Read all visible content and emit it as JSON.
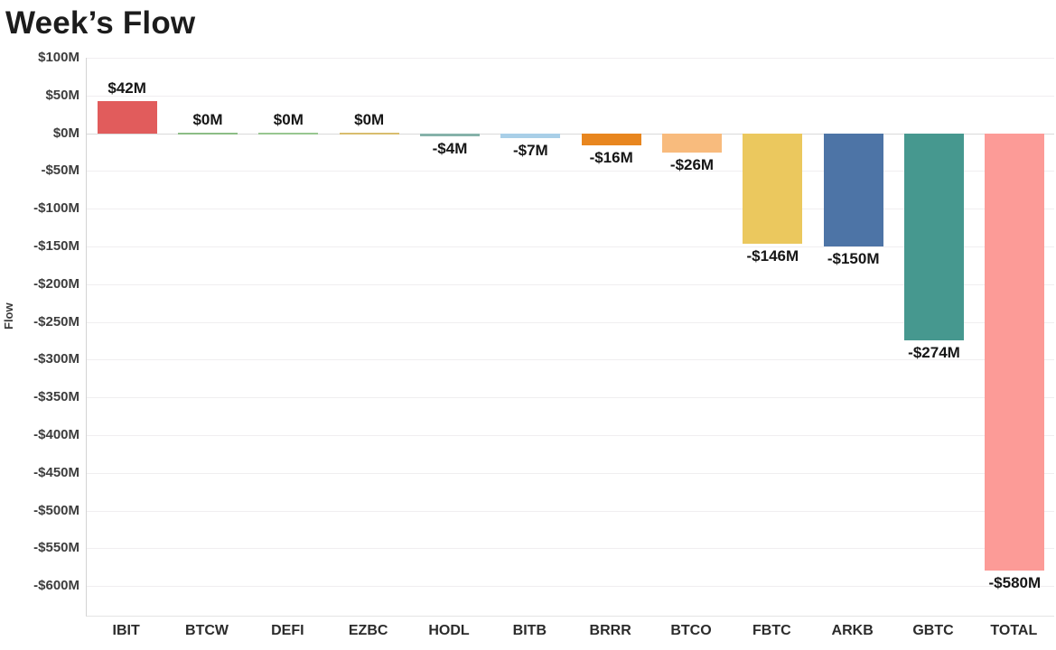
{
  "chart_data": {
    "type": "bar",
    "title": "Week’s Flow",
    "xlabel": "",
    "ylabel": "Flow",
    "categories": [
      "IBIT",
      "BTCW",
      "DEFI",
      "EZBC",
      "HODL",
      "BITB",
      "BRRR",
      "BTCO",
      "FBTC",
      "ARKB",
      "GBTC",
      "TOTAL"
    ],
    "values": [
      42,
      0,
      0,
      0,
      -4,
      -7,
      -16,
      -26,
      -146,
      -150,
      -274,
      -580
    ],
    "value_labels": [
      "$42M",
      "$0M",
      "$0M",
      "$0M",
      "-$4M",
      "-$7M",
      "-$16M",
      "-$26M",
      "-$146M",
      "-$150M",
      "-$274M",
      "-$580M"
    ],
    "bar_colors": [
      "#e15c5c",
      "#8cbd86",
      "#98c791",
      "#d9bd6e",
      "#86b2aa",
      "#a9cfe8",
      "#e8861f",
      "#f8bb7d",
      "#ebc85e",
      "#4d74a6",
      "#46988f",
      "#fc9b97"
    ],
    "ytick_labels": [
      "$100M",
      "$50M",
      "$0M",
      "-$50M",
      "-$100M",
      "-$150M",
      "-$200M",
      "-$250M",
      "-$300M",
      "-$350M",
      "-$400M",
      "-$450M",
      "-$500M",
      "-$550M",
      "-$600M"
    ],
    "ytick_values": [
      100,
      50,
      0,
      -50,
      -100,
      -150,
      -200,
      -250,
      -300,
      -350,
      -400,
      -450,
      -500,
      -550,
      -600
    ],
    "ylim": [
      -600,
      100
    ],
    "grid": true,
    "legend": false,
    "background_color": "#ffffff",
    "gridline_color": "#f0eef0"
  }
}
